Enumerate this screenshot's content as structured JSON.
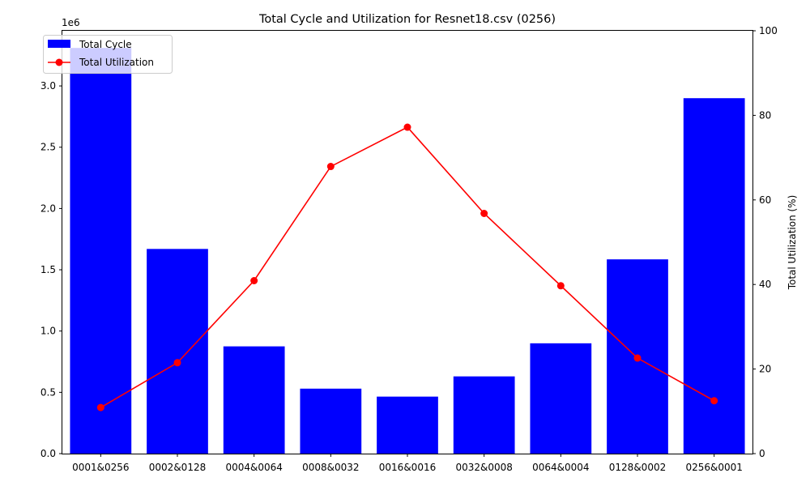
{
  "chart_data": {
    "type": "bar+line",
    "title": "Total Cycle and Utilization for Resnet18.csv (0256)",
    "categories": [
      "0001&0256",
      "0002&0128",
      "0004&0064",
      "0008&0032",
      "0016&0016",
      "0032&0008",
      "0064&0004",
      "0128&0002",
      "0256&0001"
    ],
    "series": [
      {
        "name": "Total Cycle",
        "type": "bar",
        "axis": "left",
        "color": "#0000ff",
        "values": [
          3310000,
          1670000,
          875000,
          530000,
          465000,
          630000,
          900000,
          1585000,
          2900000
        ]
      },
      {
        "name": "Total Utilization",
        "type": "line",
        "axis": "right",
        "color": "#ff0000",
        "marker": "circle",
        "values": [
          10.9,
          21.5,
          40.9,
          67.9,
          77.2,
          56.8,
          39.7,
          22.6,
          12.5
        ]
      }
    ],
    "y_left": {
      "label": "",
      "offset_label": "1e6",
      "lim": [
        0,
        3450000
      ],
      "ticks": [
        0,
        500000,
        1000000,
        1500000,
        2000000,
        2500000,
        3000000
      ],
      "tick_labels": [
        "0.0",
        "0.5",
        "1.0",
        "1.5",
        "2.0",
        "2.5",
        "3.0"
      ]
    },
    "y_right": {
      "label": "Total Utilization (%)",
      "lim": [
        0,
        100
      ],
      "ticks": [
        0,
        20,
        40,
        60,
        80,
        100
      ],
      "tick_labels": [
        "0",
        "20",
        "40",
        "60",
        "80",
        "100"
      ]
    },
    "legend": {
      "position": "top-left",
      "entries": [
        "Total Cycle",
        "Total Utilization"
      ]
    },
    "grid": false
  }
}
